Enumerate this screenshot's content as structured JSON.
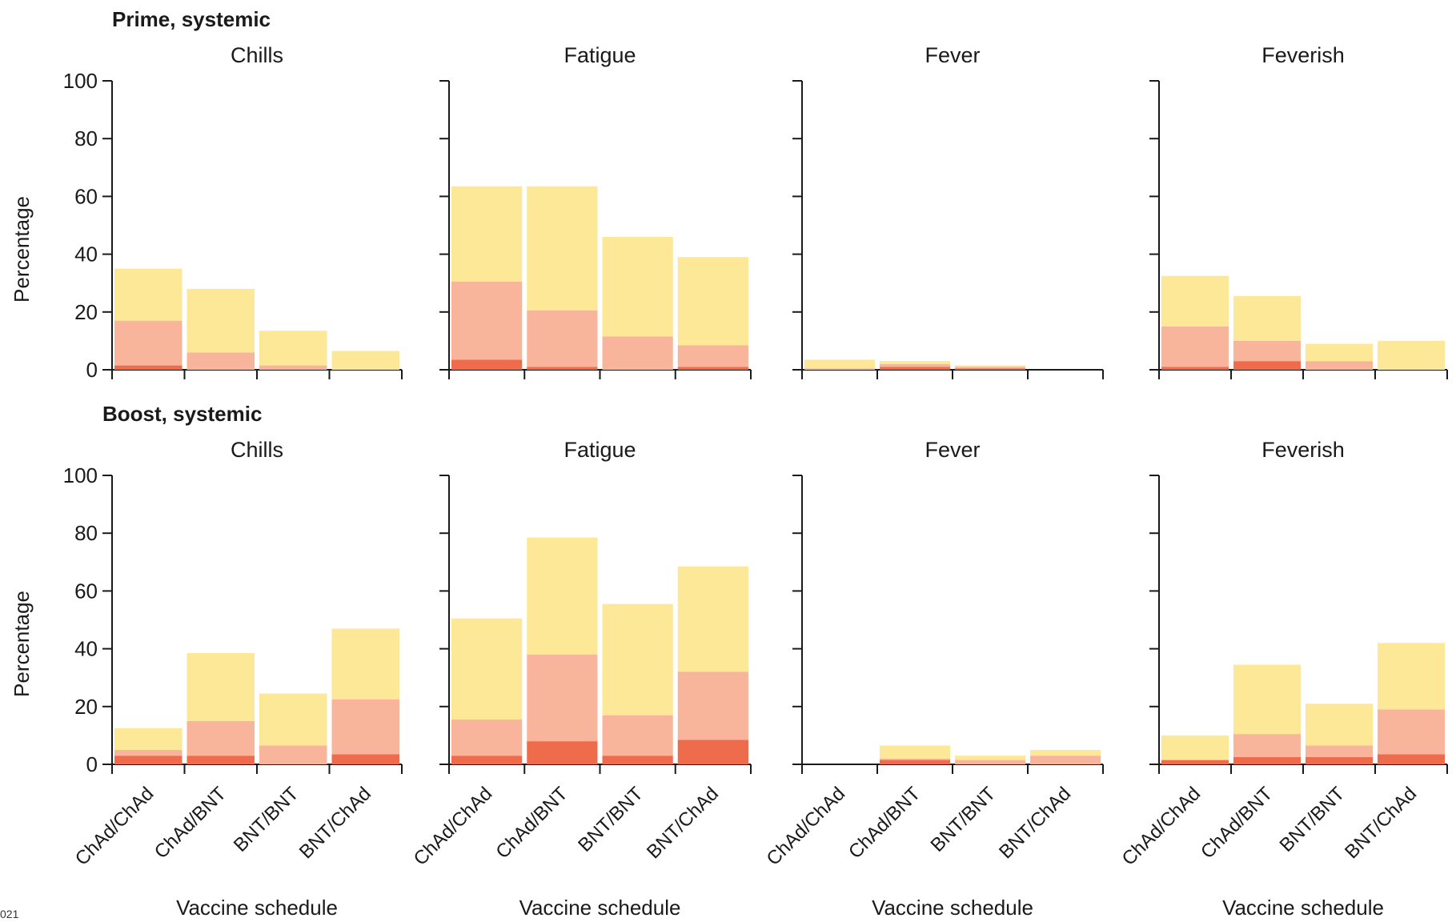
{
  "colors": {
    "mild": "#fce896",
    "moderate": "#f8b59c",
    "severe": "#ee6b4b"
  },
  "footer_fragment": "021",
  "chart_data": [
    {
      "type": "bar",
      "stacked": true,
      "section": "Prime, systemic",
      "title": "Chills",
      "ylabel": "Percentage",
      "xlabel": "",
      "ylim": [
        0,
        100
      ],
      "yticks": [
        0,
        20,
        40,
        60,
        80,
        100
      ],
      "categories": [
        "ChAd/ChAd",
        "ChAd/BNT",
        "BNT/BNT",
        "BNT/ChAd"
      ],
      "series": [
        {
          "key": "severe",
          "values": [
            1.5,
            0,
            0,
            0
          ]
        },
        {
          "key": "moderate",
          "values": [
            15.5,
            6,
            1.5,
            0
          ]
        },
        {
          "key": "mild",
          "values": [
            18,
            22,
            12,
            6.5
          ]
        }
      ]
    },
    {
      "type": "bar",
      "stacked": true,
      "title": "Fatigue",
      "ylabel": "",
      "xlabel": "",
      "ylim": [
        0,
        100
      ],
      "yticks": [
        0,
        20,
        40,
        60,
        80,
        100
      ],
      "categories": [
        "ChAd/ChAd",
        "ChAd/BNT",
        "BNT/BNT",
        "BNT/ChAd"
      ],
      "series": [
        {
          "key": "severe",
          "values": [
            3.5,
            1,
            0,
            1
          ]
        },
        {
          "key": "moderate",
          "values": [
            27,
            19.5,
            11.5,
            7.5
          ]
        },
        {
          "key": "mild",
          "values": [
            33,
            43,
            34.5,
            30.5
          ]
        }
      ]
    },
    {
      "type": "bar",
      "stacked": true,
      "title": "Fever",
      "ylabel": "",
      "xlabel": "",
      "ylim": [
        0,
        100
      ],
      "yticks": [
        0,
        20,
        40,
        60,
        80,
        100
      ],
      "categories": [
        "ChAd/ChAd",
        "ChAd/BNT",
        "BNT/BNT",
        "BNT/ChAd"
      ],
      "series": [
        {
          "key": "severe",
          "values": [
            0,
            1,
            0.5,
            0
          ]
        },
        {
          "key": "moderate",
          "values": [
            0.5,
            1,
            0.5,
            0
          ]
        },
        {
          "key": "mild",
          "values": [
            3,
            1,
            0.5,
            0
          ]
        }
      ]
    },
    {
      "type": "bar",
      "stacked": true,
      "title": "Feverish",
      "ylabel": "",
      "xlabel": "",
      "ylim": [
        0,
        100
      ],
      "yticks": [
        0,
        20,
        40,
        60,
        80,
        100
      ],
      "categories": [
        "ChAd/ChAd",
        "ChAd/BNT",
        "BNT/BNT",
        "BNT/ChAd"
      ],
      "series": [
        {
          "key": "severe",
          "values": [
            1,
            3,
            0,
            0
          ]
        },
        {
          "key": "moderate",
          "values": [
            14,
            7,
            3,
            0
          ]
        },
        {
          "key": "mild",
          "values": [
            17.5,
            15.5,
            6,
            10
          ]
        }
      ]
    },
    {
      "type": "bar",
      "stacked": true,
      "section": "Boost, systemic",
      "title": "Chills",
      "ylabel": "Percentage",
      "xlabel": "Vaccine schedule",
      "ylim": [
        0,
        100
      ],
      "yticks": [
        0,
        20,
        40,
        60,
        80,
        100
      ],
      "categories": [
        "ChAd/ChAd",
        "ChAd/BNT",
        "BNT/BNT",
        "BNT/ChAd"
      ],
      "series": [
        {
          "key": "severe",
          "values": [
            3,
            3,
            0,
            3.5
          ]
        },
        {
          "key": "moderate",
          "values": [
            2,
            12,
            6.5,
            19
          ]
        },
        {
          "key": "mild",
          "values": [
            7.5,
            23.5,
            18,
            24.5
          ]
        }
      ]
    },
    {
      "type": "bar",
      "stacked": true,
      "title": "Fatigue",
      "ylabel": "",
      "xlabel": "Vaccine schedule",
      "ylim": [
        0,
        100
      ],
      "yticks": [
        0,
        20,
        40,
        60,
        80,
        100
      ],
      "categories": [
        "ChAd/ChAd",
        "ChAd/BNT",
        "BNT/BNT",
        "BNT/ChAd"
      ],
      "series": [
        {
          "key": "severe",
          "values": [
            3,
            8,
            3,
            8.5
          ]
        },
        {
          "key": "moderate",
          "values": [
            12.5,
            30,
            14,
            23.5
          ]
        },
        {
          "key": "mild",
          "values": [
            35,
            40.5,
            38.5,
            36.5
          ]
        }
      ]
    },
    {
      "type": "bar",
      "stacked": true,
      "title": "Fever",
      "ylabel": "",
      "xlabel": "Vaccine schedule",
      "ylim": [
        0,
        100
      ],
      "yticks": [
        0,
        20,
        40,
        60,
        80,
        100
      ],
      "categories": [
        "ChAd/ChAd",
        "ChAd/BNT",
        "BNT/BNT",
        "BNT/ChAd"
      ],
      "series": [
        {
          "key": "severe",
          "values": [
            0,
            1.5,
            0,
            0
          ]
        },
        {
          "key": "moderate",
          "values": [
            0,
            0.5,
            1.5,
            3
          ]
        },
        {
          "key": "mild",
          "values": [
            0,
            4.5,
            1.5,
            2
          ]
        }
      ]
    },
    {
      "type": "bar",
      "stacked": true,
      "title": "Feverish",
      "ylabel": "",
      "xlabel": "Vaccine schedule",
      "ylim": [
        0,
        100
      ],
      "yticks": [
        0,
        20,
        40,
        60,
        80,
        100
      ],
      "categories": [
        "ChAd/ChAd",
        "ChAd/BNT",
        "BNT/BNT",
        "BNT/ChAd"
      ],
      "series": [
        {
          "key": "severe",
          "values": [
            1.5,
            2.5,
            2.5,
            3.5
          ]
        },
        {
          "key": "moderate",
          "values": [
            0,
            8,
            4,
            15.5
          ]
        },
        {
          "key": "mild",
          "values": [
            8.5,
            24,
            14.5,
            23
          ]
        }
      ]
    }
  ]
}
